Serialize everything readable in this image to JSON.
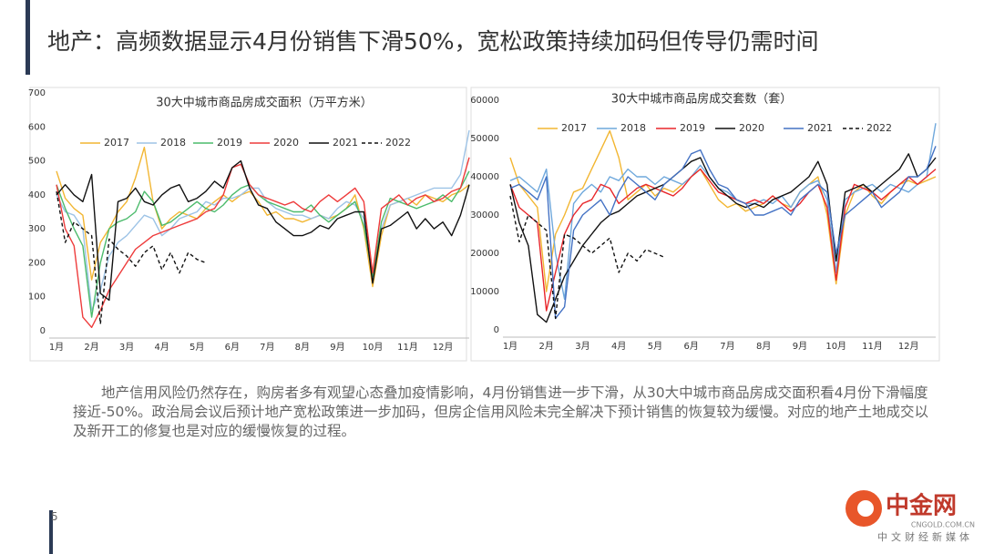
{
  "title": "地产：高频数据显示4月份销售下滑50%，宽松政策持续加码但传导仍需时间",
  "chart_data": [
    {
      "type": "line",
      "title": "30大中城市商品房成交面积（万平方米）",
      "categories": [
        "1月",
        null,
        null,
        null,
        "2月",
        null,
        null,
        null,
        "3月",
        null,
        null,
        null,
        "4月",
        null,
        null,
        null,
        "5月",
        null,
        null,
        null,
        "6月",
        null,
        null,
        null,
        "7月",
        null,
        null,
        null,
        "8月",
        null,
        null,
        null,
        "9月",
        null,
        null,
        null,
        "10月",
        null,
        null,
        null,
        "11月",
        null,
        null,
        null,
        "12月",
        null,
        null,
        null
      ],
      "ylim": [
        0,
        700
      ],
      "yticks": [
        0,
        100,
        200,
        300,
        400,
        500,
        600,
        700
      ],
      "grid": false,
      "series": [
        {
          "name": "2017",
          "color": "#f2b632",
          "dash": false,
          "values": [
            470,
            390,
            360,
            340,
            150,
            260,
            300,
            350,
            380,
            450,
            540,
            380,
            300,
            330,
            350,
            340,
            330,
            360,
            380,
            400,
            380,
            400,
            410,
            380,
            340,
            350,
            330,
            330,
            320,
            330,
            340,
            330,
            340,
            360,
            400,
            300,
            130,
            280,
            370,
            380,
            390,
            370,
            400,
            390,
            380,
            400,
            410,
            430
          ]
        },
        {
          "name": "2018",
          "color": "#9dc3e6",
          "dash": false,
          "values": [
            400,
            350,
            340,
            300,
            60,
            120,
            220,
            260,
            280,
            310,
            340,
            330,
            280,
            300,
            330,
            340,
            350,
            380,
            370,
            390,
            390,
            400,
            420,
            420,
            380,
            360,
            350,
            340,
            340,
            330,
            340,
            330,
            360,
            380,
            370,
            330,
            150,
            300,
            370,
            380,
            390,
            400,
            410,
            420,
            420,
            420,
            460,
            590
          ]
        },
        {
          "name": "2019",
          "color": "#4cbb6c",
          "dash": false,
          "values": [
            430,
            360,
            300,
            250,
            40,
            200,
            300,
            320,
            330,
            350,
            410,
            380,
            310,
            320,
            340,
            360,
            380,
            360,
            350,
            370,
            400,
            420,
            430,
            400,
            380,
            370,
            360,
            350,
            350,
            370,
            340,
            320,
            340,
            360,
            380,
            310,
            160,
            320,
            390,
            380,
            370,
            360,
            370,
            380,
            400,
            380,
            420,
            470
          ]
        },
        {
          "name": "2020",
          "color": "#ee3b3b",
          "dash": false,
          "values": [
            430,
            300,
            250,
            40,
            10,
            60,
            120,
            160,
            200,
            240,
            260,
            280,
            290,
            300,
            310,
            320,
            330,
            350,
            360,
            400,
            480,
            490,
            430,
            400,
            390,
            380,
            370,
            380,
            360,
            350,
            380,
            400,
            380,
            400,
            420,
            380,
            170,
            360,
            380,
            400,
            370,
            390,
            400,
            380,
            390,
            410,
            420,
            510
          ]
        },
        {
          "name": "2021",
          "color": "#111111",
          "dash": false,
          "values": [
            400,
            430,
            400,
            380,
            460,
            110,
            90,
            380,
            390,
            420,
            380,
            370,
            400,
            420,
            430,
            380,
            390,
            410,
            440,
            420,
            480,
            500,
            420,
            370,
            360,
            320,
            300,
            280,
            280,
            290,
            310,
            300,
            330,
            340,
            350,
            350,
            140,
            300,
            310,
            330,
            350,
            300,
            330,
            300,
            320,
            280,
            340,
            430
          ]
        },
        {
          "name": "2022",
          "color": "#111111",
          "dash": true,
          "values": [
            410,
            260,
            320,
            300,
            280,
            20,
            270,
            240,
            220,
            190,
            230,
            250,
            180,
            230,
            170,
            230,
            210,
            200,
            null,
            null,
            null,
            null,
            null,
            null,
            null,
            null,
            null,
            null,
            null,
            null,
            null,
            null,
            null,
            null,
            null,
            null,
            null,
            null,
            null,
            null,
            null,
            null,
            null,
            null,
            null,
            null,
            null,
            null
          ]
        }
      ]
    },
    {
      "type": "line",
      "title": "30大中城市商品房成交套数（套）",
      "categories": [
        "1月",
        null,
        null,
        null,
        "2月",
        null,
        null,
        null,
        "3月",
        null,
        null,
        null,
        "4月",
        null,
        null,
        null,
        "5月",
        null,
        null,
        null,
        "6月",
        null,
        null,
        null,
        "7月",
        null,
        null,
        null,
        "8月",
        null,
        null,
        null,
        "9月",
        null,
        null,
        null,
        "10月",
        null,
        null,
        null,
        "11月",
        null,
        null,
        null,
        "12月",
        null,
        null,
        null
      ],
      "ylim": [
        0,
        60000
      ],
      "yticks": [
        0,
        10000,
        20000,
        30000,
        40000,
        50000,
        60000
      ],
      "grid": false,
      "series": [
        {
          "name": "2017",
          "color": "#f2b632",
          "dash": false,
          "values": [
            45000,
            38000,
            35000,
            32000,
            10000,
            25000,
            30000,
            36000,
            37000,
            42000,
            47000,
            52000,
            45000,
            34000,
            36000,
            38000,
            35000,
            37000,
            36000,
            38000,
            40000,
            42000,
            38000,
            34000,
            32000,
            33000,
            31000,
            32000,
            33000,
            35000,
            33000,
            32000,
            36000,
            38000,
            40000,
            30000,
            12000,
            30000,
            36000,
            38000,
            35000,
            33000,
            36000,
            38000,
            39000,
            38000,
            39000,
            40000
          ]
        },
        {
          "name": "2018",
          "color": "#6fa8dc",
          "dash": false,
          "values": [
            39000,
            40000,
            38000,
            36000,
            42000,
            20000,
            8000,
            33000,
            36000,
            38000,
            36000,
            40000,
            39000,
            42000,
            40000,
            40000,
            38000,
            40000,
            39000,
            38000,
            40000,
            43000,
            40000,
            37000,
            36000,
            34000,
            33000,
            33000,
            34000,
            33000,
            35000,
            32000,
            36000,
            38000,
            39000,
            34000,
            15000,
            34000,
            36000,
            37000,
            38000,
            36000,
            38000,
            37000,
            36000,
            38000,
            40000,
            54000
          ]
        },
        {
          "name": "2019",
          "color": "#e8262a",
          "dash": false,
          "values": [
            38000,
            32000,
            30000,
            28000,
            5000,
            15000,
            25000,
            30000,
            33000,
            34000,
            38000,
            37000,
            33000,
            35000,
            37000,
            38000,
            37000,
            36000,
            35000,
            37000,
            40000,
            42000,
            39000,
            36000,
            35000,
            34000,
            33000,
            34000,
            33000,
            35000,
            33000,
            31000,
            33000,
            36000,
            38000,
            32000,
            13000,
            32000,
            38000,
            37000,
            36000,
            34000,
            36000,
            38000,
            40000,
            38000,
            40000,
            42000
          ]
        },
        {
          "name": "2020",
          "color": "#111111",
          "dash": false,
          "values": [
            38000,
            28000,
            22000,
            4000,
            2000,
            8000,
            14000,
            18000,
            22000,
            25000,
            28000,
            30000,
            31000,
            33000,
            35000,
            36000,
            37000,
            38000,
            40000,
            42000,
            44000,
            45000,
            40000,
            37000,
            35000,
            33000,
            32000,
            33000,
            32000,
            34000,
            35000,
            36000,
            38000,
            40000,
            44000,
            38000,
            18000,
            36000,
            37000,
            38000,
            36000,
            38000,
            40000,
            42000,
            46000,
            40000,
            42000,
            45000
          ]
        },
        {
          "name": "2021",
          "color": "#4472c4",
          "dash": false,
          "values": [
            37000,
            38000,
            36000,
            34000,
            40000,
            3000,
            6000,
            26000,
            30000,
            32000,
            34000,
            30000,
            36000,
            40000,
            38000,
            36000,
            34000,
            38000,
            40000,
            42000,
            46000,
            47000,
            42000,
            38000,
            37000,
            34000,
            33000,
            30000,
            30000,
            31000,
            32000,
            30000,
            34000,
            36000,
            38000,
            36000,
            20000,
            30000,
            32000,
            34000,
            36000,
            32000,
            34000,
            36000,
            40000,
            40000,
            42000,
            48000
          ]
        },
        {
          "name": "2022",
          "color": "#111111",
          "dash": true,
          "values": [
            35000,
            23000,
            30000,
            28000,
            26000,
            3000,
            25000,
            24000,
            22000,
            20000,
            22000,
            24000,
            15000,
            20000,
            18000,
            21000,
            20000,
            19000,
            null,
            null,
            null,
            null,
            null,
            null,
            null,
            null,
            null,
            null,
            null,
            null,
            null,
            null,
            null,
            null,
            null,
            null,
            null,
            null,
            null,
            null,
            null,
            null,
            null,
            null,
            null,
            null,
            null,
            null
          ]
        }
      ]
    }
  ],
  "body_text": "地产信用风险仍然存在，购房者多有观望心态叠加疫情影响，4月份销售进一步下滑，从30大中城市商品房成交面积看4月份下滑幅度接近-50%。政治局会议后预计地产宽松政策进一步加码，但房企信用风险未完全解决下预计销售的恢复较为缓慢。对应的地产土地成交以及新开工的修复也是对应的缓慢恢复的过程。",
  "page_number": "5",
  "logo": {
    "name": "中金网",
    "domain": "CNGOLD.COM.CN",
    "slogan": "中文财经新媒体"
  }
}
